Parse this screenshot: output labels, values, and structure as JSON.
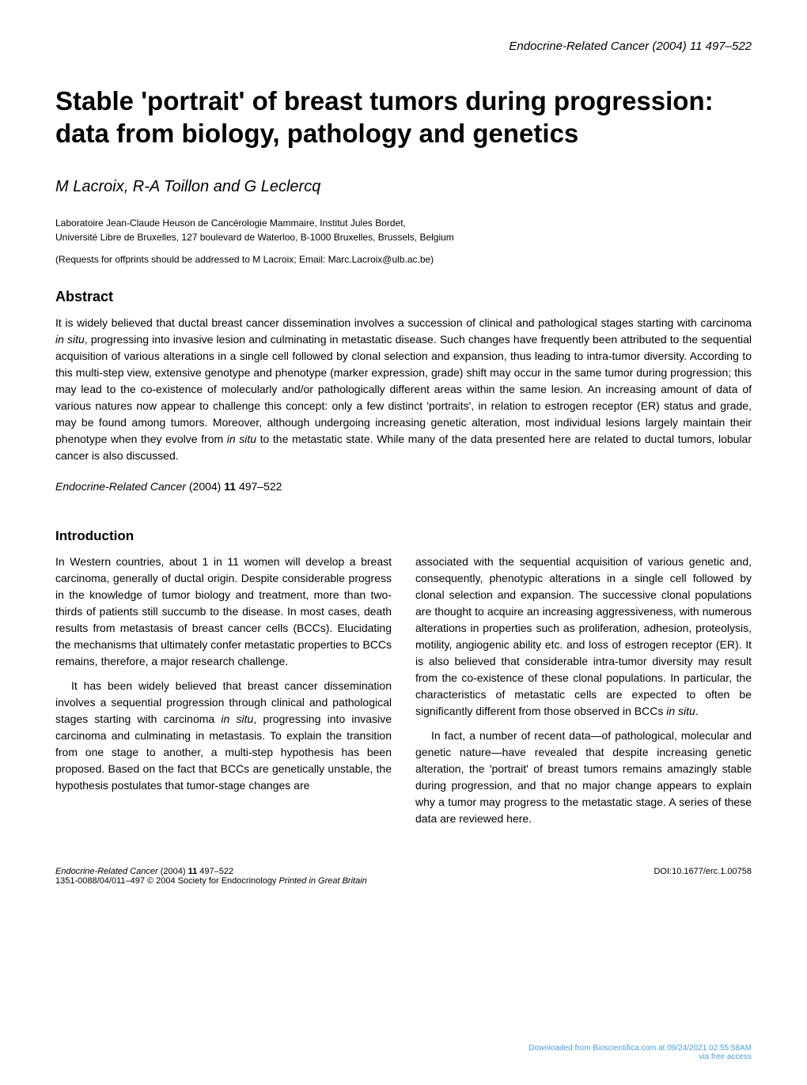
{
  "header": {
    "journal_ref": "Endocrine-Related Cancer (2004) 11 497–522"
  },
  "title": "Stable 'portrait' of breast tumors during progression: data from biology, pathology and genetics",
  "authors": "M Lacroix, R-A Toillon and G Leclercq",
  "affiliation_line1": "Laboratoire Jean-Claude Heuson de Cancérologie Mammaire, Institut Jules Bordet,",
  "affiliation_line2": "Université Libre de Bruxelles, 127 boulevard de Waterloo, B-1000 Bruxelles, Brussels, Belgium",
  "correspondence": "(Requests for offprints should be addressed to M Lacroix; Email: Marc.Lacroix@ulb.ac.be)",
  "abstract": {
    "heading": "Abstract",
    "body_p1": "It is widely believed that ductal breast cancer dissemination involves a succession of clinical and pathological stages starting with carcinoma ",
    "body_p1_italic1": "in situ",
    "body_p1_cont": ", progressing into invasive lesion and culminating in metastatic disease. Such changes have frequently been attributed to the sequential acquisition of various alterations in a single cell followed by clonal selection and expansion, thus leading to intra-tumor diversity. According to this multi-step view, extensive genotype and phenotype (marker expression, grade) shift may occur in the same tumor during progression; this may lead to the co-existence of molecularly and/or pathologically different areas within the same lesion. An increasing amount of data of various natures now appear to challenge this concept: only a few distinct 'portraits', in relation to estrogen receptor (ER) status and grade, may be found among tumors. Moreover, although undergoing increasing genetic alteration, most individual lesions largely maintain their phenotype when they evolve from ",
    "body_p1_italic2": "in situ",
    "body_p1_end": " to the metastatic state. While many of the data presented here are related to ductal tumors, lobular cancer is also discussed."
  },
  "citation": {
    "journal": "Endocrine-Related Cancer",
    "year": "(2004)",
    "volume": "11",
    "pages": "497–522"
  },
  "introduction": {
    "heading": "Introduction",
    "col1_p1": "In Western countries, about 1 in 11 women will develop a breast carcinoma, generally of ductal origin. Despite considerable progress in the knowledge of tumor biology and treatment, more than two-thirds of patients still succumb to the disease. In most cases, death results from metastasis of breast cancer cells (BCCs). Elucidating the mechanisms that ultimately confer metastatic properties to BCCs remains, therefore, a major research challenge.",
    "col1_p2_a": "It has been widely believed that breast cancer dissemination involves a sequential progression through clinical and pathological stages starting with carcinoma ",
    "col1_p2_italic": "in situ",
    "col1_p2_b": ", progressing into invasive carcinoma and culminating in metastasis. To explain the transition from one stage to another, a multi-step hypothesis has been proposed. Based on the fact that BCCs are genetically unstable, the hypothesis postulates that tumor-stage changes are",
    "col2_p1_a": "associated with the sequential acquisition of various genetic and, consequently, phenotypic alterations in a single cell followed by clonal selection and expansion. The successive clonal populations are thought to acquire an increasing aggressiveness, with numerous alterations in properties such as proliferation, adhesion, proteolysis, motility, angiogenic ability etc. and loss of estrogen receptor (ER). It is also believed that considerable intra-tumor diversity may result from the co-existence of these clonal populations. In particular, the characteristics of metastatic cells are expected to often be significantly different from those observed in BCCs ",
    "col2_p1_italic": "in situ",
    "col2_p1_b": ".",
    "col2_p2": "In fact, a number of recent data—of pathological, molecular and genetic nature—have revealed that despite increasing genetic alteration, the 'portrait' of breast tumors remains amazingly stable during progression, and that no major change appears to explain why a tumor may progress to the metastatic stage. A series of these data are reviewed here."
  },
  "footer": {
    "left_journal": "Endocrine-Related Cancer",
    "left_year": "(2004)",
    "left_volume": "11",
    "left_pages": "497–522",
    "left_issn": "1351-0088/04/011–497 © 2004 Society for Endocrinology ",
    "left_printed": "Printed in Great Britain",
    "right_doi": "DOI:10.1677/erc.1.00758"
  },
  "download": {
    "line1": "Downloaded from Bioscientifica.com at 09/24/2021 02:55:58AM",
    "line2": "via free access"
  },
  "colors": {
    "text": "#000000",
    "background": "#ffffff",
    "link": "#4a9fd8"
  },
  "typography": {
    "body_fontsize_pt": 14,
    "title_fontsize_pt": 33,
    "authors_fontsize_pt": 20,
    "heading_fontsize_pt": 18,
    "small_fontsize_pt": 12,
    "footer_fontsize_pt": 11
  }
}
